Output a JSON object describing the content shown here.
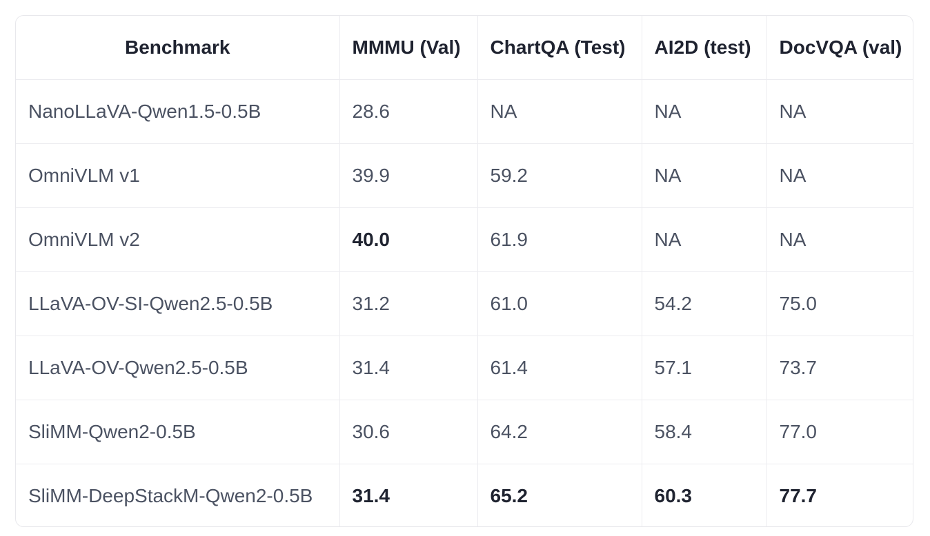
{
  "table": {
    "headers": [
      "Benchmark",
      "MMMU (Val)",
      "ChartQA (Test)",
      "AI2D (test)",
      "DocVQA (val)"
    ],
    "rows": [
      {
        "cells": [
          "NanoLLaVA-Qwen1.5-0.5B",
          "28.6",
          "NA",
          "NA",
          "NA"
        ],
        "bold": [
          false,
          false,
          false,
          false,
          false
        ]
      },
      {
        "cells": [
          "OmniVLM v1",
          "39.9",
          "59.2",
          "NA",
          "NA"
        ],
        "bold": [
          false,
          false,
          false,
          false,
          false
        ]
      },
      {
        "cells": [
          "OmniVLM v2",
          "40.0",
          "61.9",
          "NA",
          "NA"
        ],
        "bold": [
          false,
          true,
          false,
          false,
          false
        ]
      },
      {
        "cells": [
          "LLaVA-OV-SI-Qwen2.5-0.5B",
          "31.2",
          "61.0",
          "54.2",
          "75.0"
        ],
        "bold": [
          false,
          false,
          false,
          false,
          false
        ]
      },
      {
        "cells": [
          "LLaVA-OV-Qwen2.5-0.5B",
          "31.4",
          "61.4",
          "57.1",
          "73.7"
        ],
        "bold": [
          false,
          false,
          false,
          false,
          false
        ]
      },
      {
        "cells": [
          "SliMM-Qwen2-0.5B",
          "30.6",
          "64.2",
          "58.4",
          "77.0"
        ],
        "bold": [
          false,
          false,
          false,
          false,
          false
        ]
      },
      {
        "cells": [
          "SliMM-DeepStackM-Qwen2-0.5B",
          "31.4",
          "65.2",
          "60.3",
          "77.7"
        ],
        "bold": [
          false,
          true,
          true,
          true,
          true
        ]
      }
    ]
  },
  "colors": {
    "header_text": "#1f2330",
    "cell_text": "#4b5262",
    "border": "#ececf0"
  }
}
